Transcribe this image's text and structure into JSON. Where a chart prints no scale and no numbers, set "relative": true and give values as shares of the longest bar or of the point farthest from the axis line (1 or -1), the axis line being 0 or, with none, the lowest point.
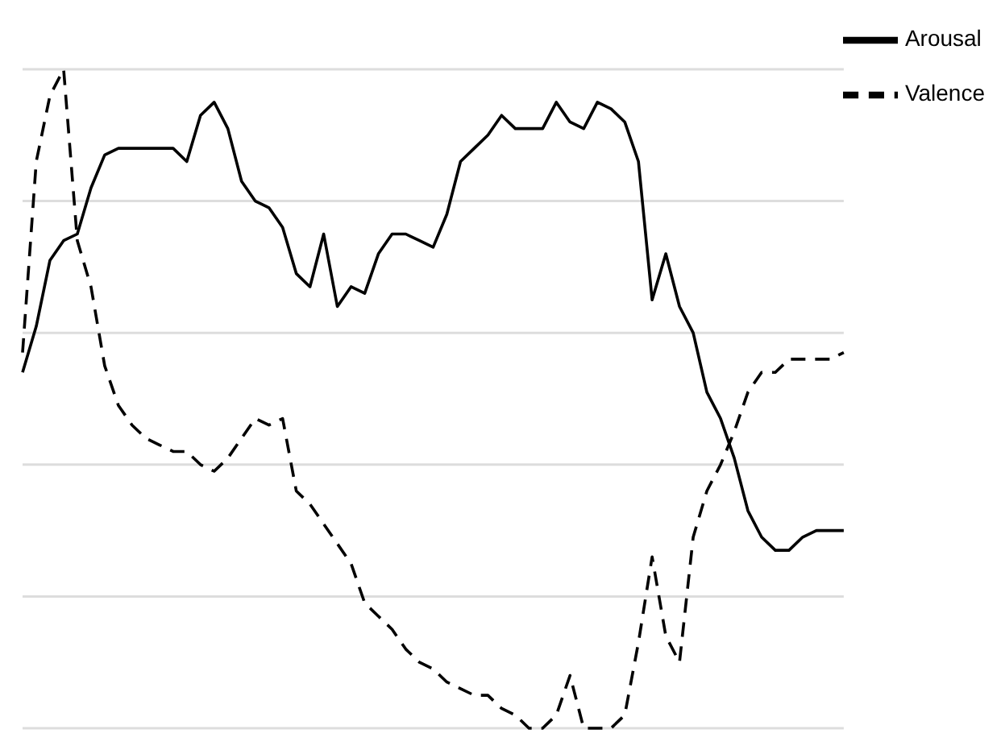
{
  "chart_data": {
    "type": "line",
    "relative": true,
    "categories": [
      null,
      null,
      null,
      null,
      null,
      null,
      null,
      null,
      null,
      null,
      null,
      null,
      null,
      null,
      null,
      null,
      null,
      null,
      null,
      null,
      null,
      null,
      null,
      null,
      null,
      null,
      null,
      null,
      null,
      null,
      null,
      null,
      null,
      null,
      null,
      null,
      null,
      null,
      null,
      null,
      null,
      null,
      null,
      null,
      null,
      null,
      null,
      null,
      null,
      null,
      null,
      null,
      null,
      null,
      null,
      null,
      null,
      null,
      null,
      null,
      null
    ],
    "series": [
      {
        "name": "Arousal",
        "color": "#000000",
        "line_style": "solid",
        "values": [
          0.54,
          0.61,
          0.71,
          0.74,
          0.75,
          0.82,
          0.87,
          0.88,
          0.88,
          0.88,
          0.88,
          0.88,
          0.86,
          0.93,
          0.95,
          0.91,
          0.83,
          0.8,
          0.79,
          0.76,
          0.69,
          0.67,
          0.75,
          0.64,
          0.67,
          0.66,
          0.72,
          0.75,
          0.75,
          0.74,
          0.73,
          0.78,
          0.86,
          0.88,
          0.9,
          0.93,
          0.91,
          0.91,
          0.91,
          0.95,
          0.92,
          0.91,
          0.95,
          0.94,
          0.92,
          0.86,
          0.65,
          0.72,
          0.64,
          0.6,
          0.51,
          0.47,
          0.41,
          0.33,
          0.29,
          0.27,
          0.27,
          0.29,
          0.3,
          0.3,
          0.3
        ]
      },
      {
        "name": "Valence",
        "color": "#000000",
        "line_style": "dashed",
        "values": [
          0.57,
          0.86,
          0.96,
          1.0,
          0.74,
          0.67,
          0.55,
          0.49,
          0.46,
          0.44,
          0.43,
          0.42,
          0.42,
          0.4,
          0.39,
          0.41,
          0.44,
          0.47,
          0.46,
          0.47,
          0.36,
          0.34,
          0.31,
          0.28,
          0.25,
          0.19,
          0.17,
          0.15,
          0.12,
          0.1,
          0.09,
          0.07,
          0.06,
          0.05,
          0.05,
          0.03,
          0.02,
          0.0,
          0.0,
          0.02,
          0.08,
          0.0,
          0.0,
          0.0,
          0.02,
          0.13,
          0.26,
          0.14,
          0.1,
          0.29,
          0.36,
          0.4,
          0.45,
          0.51,
          0.54,
          0.54,
          0.56,
          0.56,
          0.56,
          0.56,
          0.57
        ]
      }
    ],
    "grid": "y",
    "legend": "top right"
  }
}
